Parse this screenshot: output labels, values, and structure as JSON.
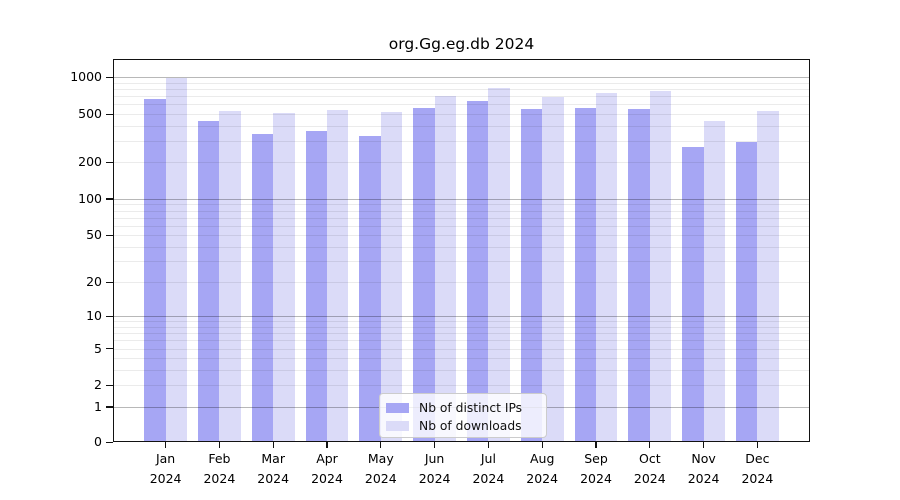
{
  "title": "org.Gg.eg.db 2024",
  "colors": {
    "ips_bar": "#a6a6f4",
    "downloads_bar": "#dbdbf8",
    "grid_major": "rgba(0,0,0,0.28)",
    "grid_minor": "rgba(0,0,0,0.08)",
    "axis": "#121212"
  },
  "legend": {
    "items": [
      {
        "label": "Nb of distinct IPs"
      },
      {
        "label": "Nb of downloads"
      }
    ]
  },
  "y_axis": {
    "tick_values": [
      0,
      1,
      2,
      5,
      10,
      20,
      50,
      100,
      200,
      500,
      1000
    ],
    "tick_labels": [
      "0",
      "1",
      "2",
      "5",
      "10",
      "20",
      "50",
      "100",
      "200",
      "500",
      "1000"
    ]
  },
  "x_axis": {
    "labels": [
      {
        "month": "Jan",
        "year": "2024"
      },
      {
        "month": "Feb",
        "year": "2024"
      },
      {
        "month": "Mar",
        "year": "2024"
      },
      {
        "month": "Apr",
        "year": "2024"
      },
      {
        "month": "May",
        "year": "2024"
      },
      {
        "month": "Jun",
        "year": "2024"
      },
      {
        "month": "Jul",
        "year": "2024"
      },
      {
        "month": "Aug",
        "year": "2024"
      },
      {
        "month": "Sep",
        "year": "2024"
      },
      {
        "month": "Oct",
        "year": "2024"
      },
      {
        "month": "Nov",
        "year": "2024"
      },
      {
        "month": "Dec",
        "year": "2024"
      }
    ]
  },
  "chart_data": {
    "type": "bar",
    "title": "org.Gg.eg.db 2024",
    "categories": [
      "Jan 2024",
      "Feb 2024",
      "Mar 2024",
      "Apr 2024",
      "May 2024",
      "Jun 2024",
      "Jul 2024",
      "Aug 2024",
      "Sep 2024",
      "Oct 2024",
      "Nov 2024",
      "Dec 2024"
    ],
    "series": [
      {
        "name": "Nb of distinct IPs",
        "values": [
          670,
          435,
          340,
          365,
          330,
          560,
          645,
          545,
          565,
          545,
          267,
          295
        ]
      },
      {
        "name": "Nb of downloads",
        "values": [
          985,
          530,
          510,
          540,
          520,
          700,
          820,
          685,
          750,
          775,
          440,
          530
        ]
      }
    ],
    "xlabel": "",
    "ylabel": "",
    "y_scale": "log1p",
    "y_ticks": [
      0,
      1,
      2,
      5,
      10,
      20,
      50,
      100,
      200,
      500,
      1000
    ],
    "y_minor_gridlines": [
      2,
      3,
      4,
      5,
      6,
      7,
      8,
      9,
      20,
      30,
      40,
      50,
      60,
      70,
      80,
      90,
      200,
      300,
      400,
      500,
      600,
      700,
      800,
      900
    ],
    "y_major_gridlines": [
      1,
      10,
      100,
      1000
    ],
    "ylim": [
      0,
      1360
    ],
    "grid": "on",
    "legend_position": "lower center"
  }
}
